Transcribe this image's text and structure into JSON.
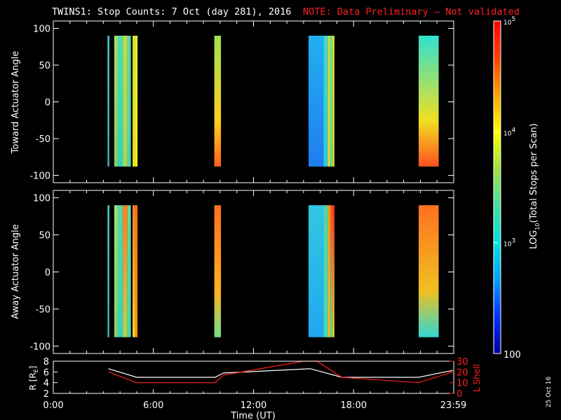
{
  "header": {
    "title": "TWINS1: Stop Counts:  7 Oct (day 281), 2016",
    "note": "NOTE: Data Preliminary – Not validated",
    "note_color": "#ff2020"
  },
  "side_date": "25 Oct 16",
  "colors": {
    "background": "#000000",
    "axes": "#ffffff",
    "lshell": "#ff2020",
    "r": "#ffffff"
  },
  "chart_data": [
    {
      "type": "heatmap",
      "name": "toward",
      "ylabel": "Toward Actuator Angle",
      "ylim": [
        -110,
        110
      ],
      "yticks": [
        100,
        50,
        0,
        -50,
        -100
      ],
      "xlim": [
        0,
        24
      ],
      "xlabel": "",
      "coverage_y": [
        -88,
        90
      ],
      "bands": [
        {
          "t0": 3.25,
          "t1": 3.36,
          "bottom": "#3aa8b8",
          "top": "#48c8d8"
        },
        {
          "t0": 3.65,
          "t1": 3.9,
          "bottom": "#7fd070",
          "top": "#9ae070"
        },
        {
          "t0": 3.9,
          "t1": 4.15,
          "bottom": "#2ed6c8",
          "top": "#48e0b8"
        },
        {
          "t0": 4.15,
          "t1": 4.45,
          "bottom": "#9ed860",
          "top": "#b6e050"
        },
        {
          "t0": 4.45,
          "t1": 4.65,
          "bottom": "#4ed4b0",
          "top": "#60d8a0"
        },
        {
          "t0": 4.75,
          "t1": 4.9,
          "bottom": "#e8e020",
          "top": "#d8e030"
        },
        {
          "t0": 4.9,
          "t1": 5.05,
          "bottom": "#f0f020",
          "top": "#e0f040"
        },
        {
          "t0": 9.65,
          "t1": 10.05,
          "bottom": "#ff6020",
          "top": "#a0e050",
          "mid": "#ffd020"
        },
        {
          "t0": 15.3,
          "t1": 16.2,
          "bottom": "#1e7ef0",
          "top": "#22b0f0"
        },
        {
          "t0": 16.2,
          "t1": 16.45,
          "bottom": "#30c8e0",
          "top": "#40d8d0"
        },
        {
          "t0": 16.45,
          "t1": 16.6,
          "bottom": "#d8e030",
          "top": "#c8e040"
        },
        {
          "t0": 16.6,
          "t1": 16.75,
          "bottom": "#60d890",
          "top": "#70e080"
        },
        {
          "t0": 16.75,
          "t1": 16.85,
          "bottom": "#f0d020",
          "top": "#e8e030"
        },
        {
          "t0": 21.9,
          "t1": 23.1,
          "bottom": "#ff5020",
          "top": "#30e0d0",
          "mid": "#f0e020"
        }
      ]
    },
    {
      "type": "heatmap",
      "name": "away",
      "ylabel": "Away Actuator Angle",
      "ylim": [
        -110,
        110
      ],
      "yticks": [
        100,
        50,
        0,
        -50,
        -100
      ],
      "xlim": [
        0,
        24
      ],
      "xlabel": "",
      "coverage_y": [
        -88,
        90
      ],
      "bands": [
        {
          "t0": 3.25,
          "t1": 3.36,
          "bottom": "#3aa8b8",
          "top": "#48c8d8"
        },
        {
          "t0": 3.65,
          "t1": 3.9,
          "bottom": "#7fd070",
          "top": "#9ae070"
        },
        {
          "t0": 3.9,
          "t1": 4.15,
          "bottom": "#2ed6c8",
          "top": "#48e0b8"
        },
        {
          "t0": 4.15,
          "t1": 4.45,
          "bottom": "#a8d858",
          "top": "#ff8020"
        },
        {
          "t0": 4.45,
          "t1": 4.65,
          "bottom": "#4ed4b0",
          "top": "#60d8a0"
        },
        {
          "t0": 4.75,
          "t1": 4.9,
          "bottom": "#e8e020",
          "top": "#ff8020"
        },
        {
          "t0": 4.9,
          "t1": 5.05,
          "bottom": "#ff9020",
          "top": "#ff7020"
        },
        {
          "t0": 9.65,
          "t1": 10.05,
          "bottom": "#70e090",
          "top": "#ff7020",
          "mid": "#ffb020"
        },
        {
          "t0": 15.3,
          "t1": 16.2,
          "bottom": "#20a8f0",
          "top": "#30c8e0"
        },
        {
          "t0": 16.2,
          "t1": 16.45,
          "bottom": "#40d8c0",
          "top": "#50d8b0"
        },
        {
          "t0": 16.45,
          "t1": 16.6,
          "bottom": "#f0c020",
          "top": "#f0a020"
        },
        {
          "t0": 16.6,
          "t1": 16.75,
          "bottom": "#60d890",
          "top": "#ff5020"
        },
        {
          "t0": 16.75,
          "t1": 16.85,
          "bottom": "#f0d020",
          "top": "#ff3020"
        },
        {
          "t0": 21.9,
          "t1": 23.1,
          "bottom": "#30d8d0",
          "top": "#ff7020",
          "mid": "#f0c020"
        }
      ]
    },
    {
      "type": "line",
      "name": "orbit",
      "ylabel": "R [R",
      "ylabel_sub": "E",
      "ylabel_end": "]",
      "y2label": "L Shell",
      "xlabel": "Time (UT)",
      "xlim": [
        0,
        24
      ],
      "xticks": [
        "0:00",
        "6:00",
        "12:00",
        "18:00",
        "23:59"
      ],
      "xtick_values": [
        0,
        6,
        12,
        18,
        23.98
      ],
      "ylim": [
        2,
        8
      ],
      "yticks": [
        2,
        4,
        6,
        8
      ],
      "y2lim": [
        0,
        30
      ],
      "y2ticks": [
        0,
        10,
        20,
        30
      ],
      "series": [
        {
          "axis": "y",
          "x": [
            3.3,
            5.0,
            9.7,
            10.2,
            15.4,
            17.3,
            21.9,
            23.95
          ],
          "y": [
            6.6,
            5.0,
            5.0,
            5.8,
            6.6,
            5.0,
            5.0,
            6.3
          ]
        },
        {
          "axis": "y2",
          "x": [
            3.3,
            5.0,
            9.7,
            10.2,
            15.0,
            15.8,
            17.3,
            21.9,
            23.95
          ],
          "y": [
            20,
            10,
            10,
            17,
            30,
            30,
            15,
            10,
            20
          ]
        }
      ]
    }
  ],
  "colorbar": {
    "label": "LOG10(Total Stops per Scan)",
    "label_main": "LOG",
    "label_sub": "10",
    "label_end": "(Total Stops per Scan)",
    "scale": "log",
    "range": [
      100,
      100000
    ],
    "ticks": [
      {
        "value": 100000,
        "base": "10",
        "exp": "5"
      },
      {
        "value": 10000,
        "base": "10",
        "exp": "4"
      },
      {
        "value": 1000,
        "base": "10",
        "exp": "3"
      },
      {
        "value": 100,
        "base": "100",
        "exp": ""
      }
    ],
    "stops": [
      "#0000a0",
      "#0030ff",
      "#00a0ff",
      "#00e0e0",
      "#40e0a0",
      "#a0e040",
      "#ffff00",
      "#ffa000",
      "#ff4000",
      "#ff0000"
    ]
  }
}
